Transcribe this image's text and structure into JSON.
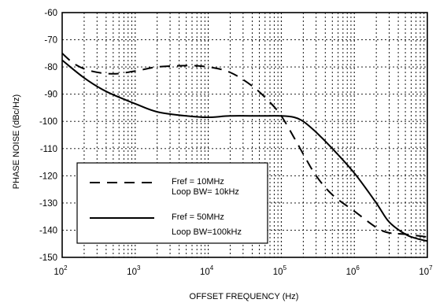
{
  "chart_data": {
    "type": "line",
    "xlabel": "OFFSET FREQUENCY (Hz)",
    "ylabel": "PHASE NOISE (dBc/Hz)",
    "xscale": "log",
    "xlim": [
      100,
      10000000
    ],
    "ylim": [
      -150,
      -60
    ],
    "grid": true,
    "legend_position": "lower-left",
    "x_ticks": [
      {
        "base": "10",
        "exp": "2"
      },
      {
        "base": "10",
        "exp": "3"
      },
      {
        "base": "10",
        "exp": "4"
      },
      {
        "base": "10",
        "exp": "5"
      },
      {
        "base": "10",
        "exp": "6"
      },
      {
        "base": "10",
        "exp": "7"
      }
    ],
    "y_ticks": [
      "-60",
      "-70",
      "-80",
      "-90",
      "-100",
      "-110",
      "-120",
      "-130",
      "-140",
      "-150"
    ],
    "series": [
      {
        "name": "Fref = 10MHz / Loop BW= 10kHz",
        "legend_lines": [
          "Fref = 10MHz",
          "Loop BW= 10kHz"
        ],
        "style": "dashed",
        "color": "#000000",
        "points": [
          [
            100,
            -75
          ],
          [
            150,
            -79
          ],
          [
            250,
            -81.5
          ],
          [
            500,
            -82.5
          ],
          [
            1000,
            -81.5
          ],
          [
            2000,
            -80
          ],
          [
            5000,
            -79.5
          ],
          [
            10000,
            -80
          ],
          [
            20000,
            -82
          ],
          [
            40000,
            -87
          ],
          [
            70000,
            -93
          ],
          [
            100000,
            -98
          ],
          [
            150000,
            -106
          ],
          [
            200000,
            -112
          ],
          [
            300000,
            -120
          ],
          [
            500000,
            -127
          ],
          [
            1000000,
            -133
          ],
          [
            2000000,
            -139
          ],
          [
            3000000,
            -141
          ],
          [
            5000000,
            -141.5
          ],
          [
            10000000,
            -142.5
          ]
        ]
      },
      {
        "name": "Fref = 50MHz / Loop BW=100kHz",
        "legend_lines": [
          "Fref = 50MHz",
          "Loop BW=100kHz"
        ],
        "style": "solid",
        "color": "#000000",
        "points": [
          [
            100,
            -77.5
          ],
          [
            200,
            -84
          ],
          [
            400,
            -89
          ],
          [
            1000,
            -93.5
          ],
          [
            2000,
            -96.5
          ],
          [
            5000,
            -98
          ],
          [
            10000,
            -98.5
          ],
          [
            20000,
            -98
          ],
          [
            50000,
            -98
          ],
          [
            100000,
            -98
          ],
          [
            150000,
            -98.5
          ],
          [
            200000,
            -100
          ],
          [
            300000,
            -104
          ],
          [
            500000,
            -110
          ],
          [
            1000000,
            -119
          ],
          [
            2000000,
            -130
          ],
          [
            3000000,
            -137
          ],
          [
            5000000,
            -141.5
          ],
          [
            7000000,
            -143
          ],
          [
            10000000,
            -144
          ]
        ]
      }
    ]
  }
}
